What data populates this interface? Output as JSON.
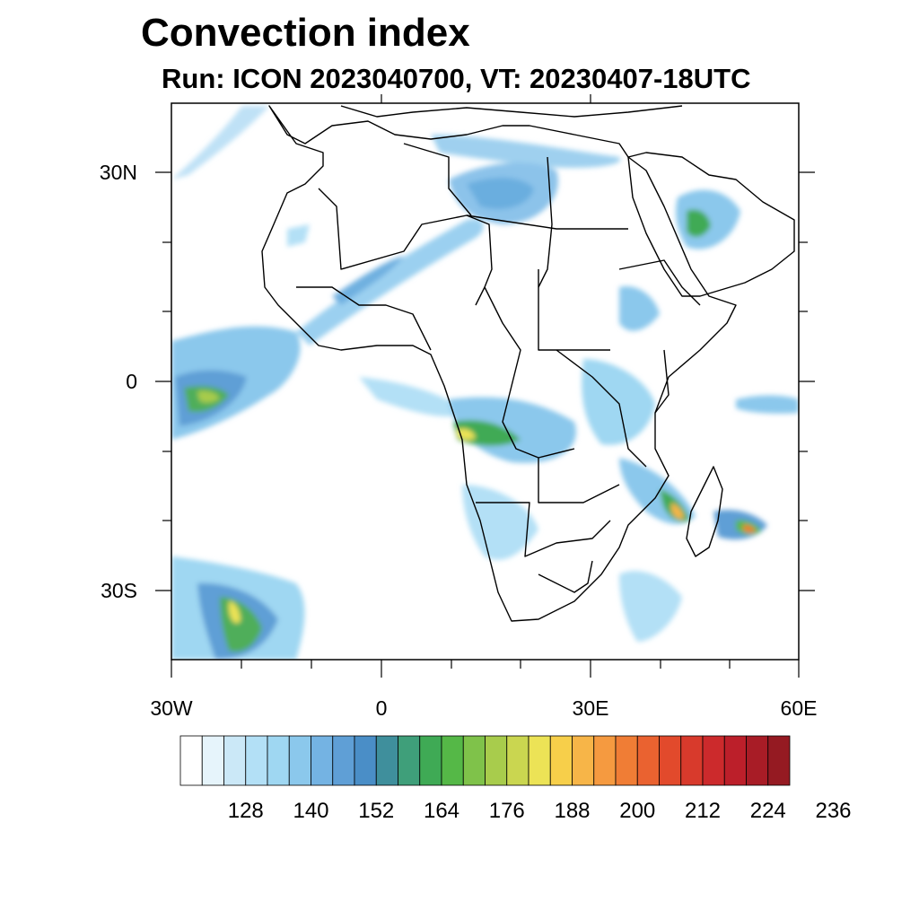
{
  "title": "Convection index",
  "subtitle": "Run: ICON 2023040700,  VT: 20230407-18UTC",
  "axes": {
    "y_labels": [
      "30N",
      "0",
      "30S"
    ],
    "x_labels": [
      "30W",
      "0",
      "30E",
      "60E"
    ]
  },
  "colorbar": {
    "colors": [
      "#ffffff",
      "#e6f4fb",
      "#cbe8f7",
      "#b3e0f6",
      "#9fd7f2",
      "#8bc8ec",
      "#74b3e3",
      "#5f9fd6",
      "#4a8ec7",
      "#3f8f9c",
      "#3f9f7a",
      "#3faa55",
      "#55b847",
      "#7fc24a",
      "#a8cc4c",
      "#cad650",
      "#ece356",
      "#f7cf4a",
      "#f7b548",
      "#f59a40",
      "#f07d35",
      "#ea6230",
      "#e24a2c",
      "#d83a2c",
      "#cc2a2c",
      "#bc1f2a",
      "#a81c26",
      "#951a22"
    ],
    "tick_labels": [
      "128",
      "140",
      "152",
      "164",
      "176",
      "188",
      "200",
      "212",
      "224",
      "236"
    ]
  }
}
